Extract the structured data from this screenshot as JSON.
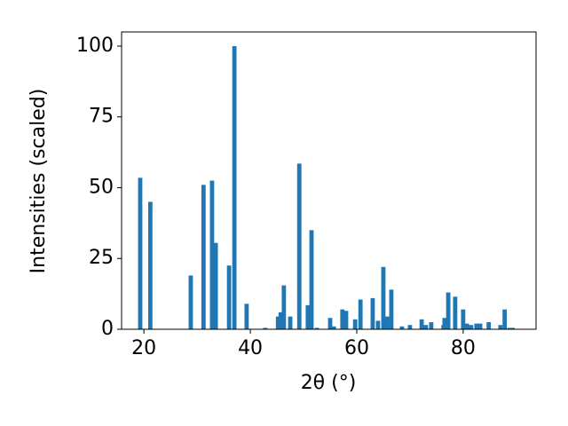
{
  "chart_data": {
    "type": "bar",
    "xlabel": "2θ (°)",
    "ylabel": "Intensities (scaled)",
    "color": "#1f77b4",
    "x": [
      19.3,
      21.2,
      28.8,
      31.2,
      32.8,
      33.5,
      36.0,
      37.0,
      39.3,
      42.8,
      45.2,
      45.7,
      46.3,
      47.5,
      49.2,
      50.8,
      51.5,
      52.5,
      55.0,
      55.7,
      57.3,
      58.0,
      59.7,
      60.7,
      63.0,
      64.0,
      65.0,
      65.7,
      66.5,
      68.5,
      70.0,
      72.2,
      73.0,
      74.0,
      76.3,
      76.5,
      77.2,
      78.5,
      80.0,
      80.7,
      81.5,
      82.5,
      83.2,
      84.8,
      87.0,
      87.8,
      88.7,
      89.3
    ],
    "values": [
      53.5,
      45,
      19,
      51,
      52.5,
      30.5,
      22.5,
      100,
      9,
      0.5,
      4.5,
      6,
      15.5,
      4.5,
      58.5,
      8.5,
      35,
      0.5,
      4,
      1,
      7,
      6.5,
      3.5,
      10.5,
      11,
      3,
      22,
      4.5,
      14,
      1,
      1.5,
      3.5,
      1.5,
      2.5,
      1.5,
      4,
      13,
      11.5,
      7,
      2,
      1.5,
      2,
      2,
      2.5,
      1.5,
      7,
      0.5,
      0.5
    ],
    "xlim": [
      15.8,
      93.7
    ],
    "ylim": [
      0,
      105
    ],
    "xticks": [
      20,
      40,
      60,
      80
    ],
    "yticks": [
      0,
      25,
      50,
      75,
      100
    ]
  }
}
